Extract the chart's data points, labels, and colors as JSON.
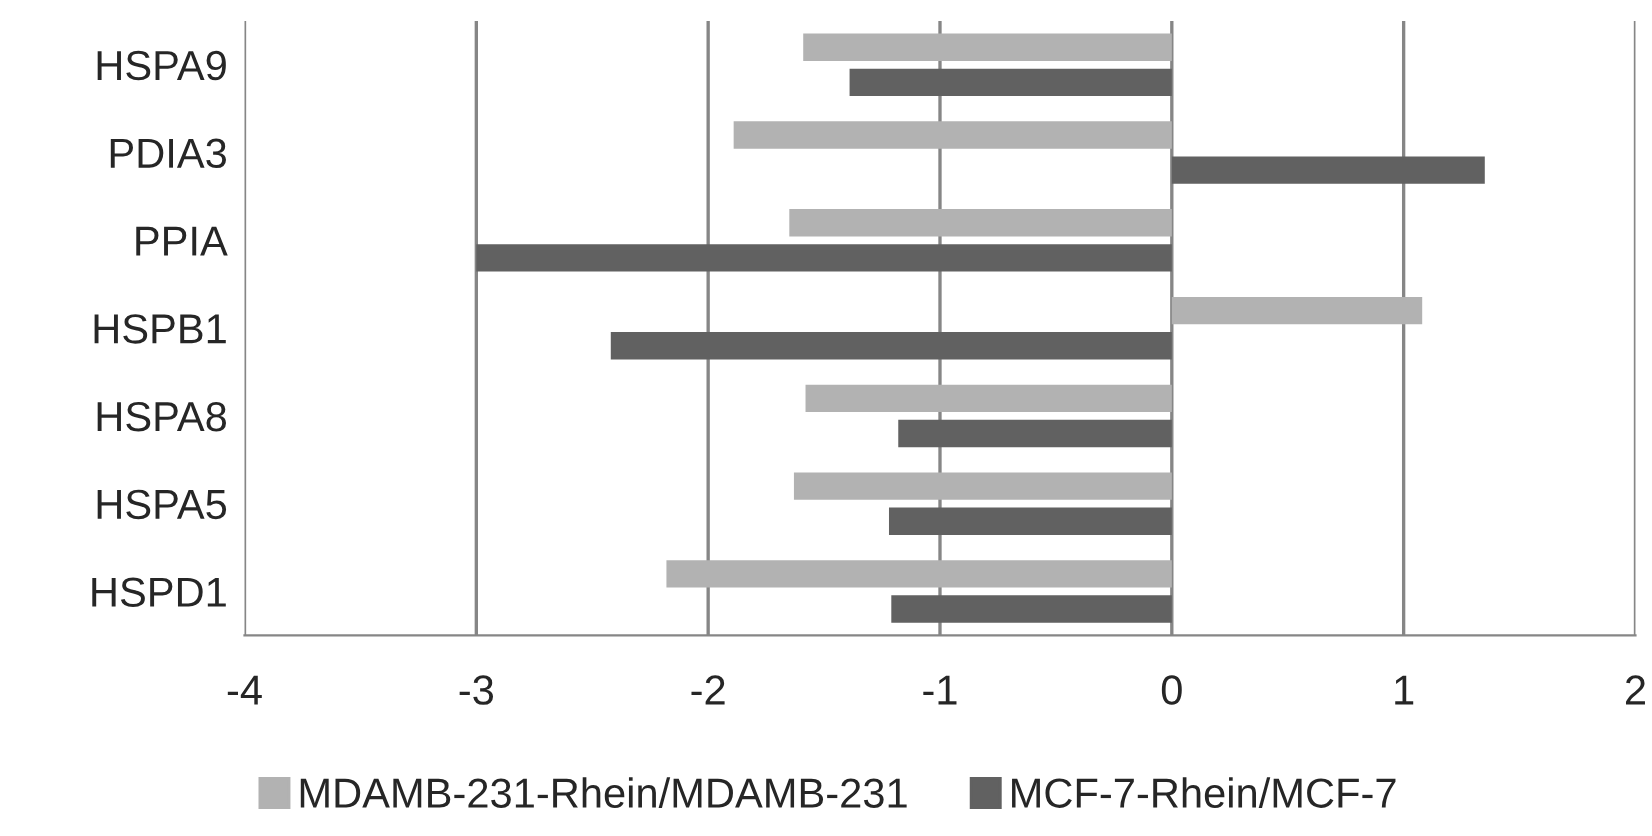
{
  "chart_data": {
    "type": "bar",
    "orientation": "horizontal",
    "categories": [
      "HSPA9",
      "PDIA3",
      "PPIA",
      "HSPB1",
      "HSPA8",
      "HSPA5",
      "HSPD1"
    ],
    "series": [
      {
        "name": "MDAMB-231-Rhein/MDAMB-231",
        "color": "#b2b2b2",
        "values": [
          -1.59,
          -1.89,
          -1.65,
          1.08,
          -1.58,
          -1.63,
          -2.18
        ]
      },
      {
        "name": "MCF-7-Rhein/MCF-7",
        "color": "#616161",
        "values": [
          -1.39,
          1.35,
          -3.0,
          -2.42,
          -1.18,
          -1.22,
          -1.21
        ]
      }
    ],
    "xlim": [
      -4,
      2
    ],
    "xticks": [
      -4,
      -3,
      -2,
      -1,
      0,
      1,
      2
    ],
    "grid": "x",
    "legend": "bottom"
  }
}
